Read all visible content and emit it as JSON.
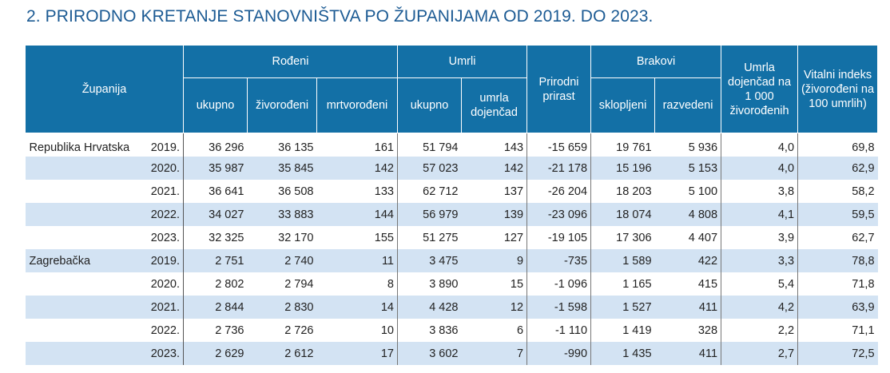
{
  "title": "2. PRIRODNO KRETANJE STANOVNIŠTVA PO ŽUPANIJAMA OD 2019. DO 2023.",
  "headers": {
    "zupanija": "Županija",
    "rodeni": "Rođeni",
    "umrli": "Umrli",
    "prirodni_prirast": "Prirodni prirast",
    "brakovi": "Brakovi",
    "umrla_dojencad_na_1000": "Umrla dojenčad na 1 000 živorođenih",
    "vitalni_indeks": "Vitalni indeks (živorođeni na 100 umrlih)",
    "rodeni_ukupno": "ukupno",
    "zivorodeni": "živorođeni",
    "mrtvorodeni": "mrtvorođeni",
    "umrli_ukupno": "ukupno",
    "umrla_dojencad": "umrla dojenčad",
    "sklopljeni": "sklopljeni",
    "razvedeni": "razvedeni"
  },
  "rows": [
    {
      "name": "Republika Hrvatska",
      "year": "2019.",
      "rodeni_ukupno": "36 296",
      "zivorodeni": "36 135",
      "mrtvorodeni": "161",
      "umrli_ukupno": "51 794",
      "umrla_dojencad": "143",
      "prirast": "-15 659",
      "sklopljeni": "19 761",
      "razvedeni": "5 936",
      "dojencad_na_1000": "4,0",
      "vitalni_indeks": "69,8"
    },
    {
      "name": "",
      "year": "2020.",
      "rodeni_ukupno": "35 987",
      "zivorodeni": "35 845",
      "mrtvorodeni": "142",
      "umrli_ukupno": "57 023",
      "umrla_dojencad": "142",
      "prirast": "-21 178",
      "sklopljeni": "15 196",
      "razvedeni": "5 153",
      "dojencad_na_1000": "4,0",
      "vitalni_indeks": "62,9"
    },
    {
      "name": "",
      "year": "2021.",
      "rodeni_ukupno": "36 641",
      "zivorodeni": "36 508",
      "mrtvorodeni": "133",
      "umrli_ukupno": "62 712",
      "umrla_dojencad": "137",
      "prirast": "-26 204",
      "sklopljeni": "18 203",
      "razvedeni": "5 100",
      "dojencad_na_1000": "3,8",
      "vitalni_indeks": "58,2"
    },
    {
      "name": "",
      "year": "2022.",
      "rodeni_ukupno": "34 027",
      "zivorodeni": "33 883",
      "mrtvorodeni": "144",
      "umrli_ukupno": "56 979",
      "umrla_dojencad": "139",
      "prirast": "-23 096",
      "sklopljeni": "18 074",
      "razvedeni": "4 808",
      "dojencad_na_1000": "4,1",
      "vitalni_indeks": "59,5"
    },
    {
      "name": "",
      "year": "2023.",
      "rodeni_ukupno": "32 325",
      "zivorodeni": "32 170",
      "mrtvorodeni": "155",
      "umrli_ukupno": "51 275",
      "umrla_dojencad": "127",
      "prirast": "-19 105",
      "sklopljeni": "17 306",
      "razvedeni": "4 407",
      "dojencad_na_1000": "3,9",
      "vitalni_indeks": "62,7"
    },
    {
      "name": "Zagrebačka",
      "year": "2019.",
      "rodeni_ukupno": "2 751",
      "zivorodeni": "2 740",
      "mrtvorodeni": "11",
      "umrli_ukupno": "3 475",
      "umrla_dojencad": "9",
      "prirast": "-735",
      "sklopljeni": "1 589",
      "razvedeni": "422",
      "dojencad_na_1000": "3,3",
      "vitalni_indeks": "78,8"
    },
    {
      "name": "",
      "year": "2020.",
      "rodeni_ukupno": "2 802",
      "zivorodeni": "2 794",
      "mrtvorodeni": "8",
      "umrli_ukupno": "3 890",
      "umrla_dojencad": "15",
      "prirast": "-1 096",
      "sklopljeni": "1 165",
      "razvedeni": "415",
      "dojencad_na_1000": "5,4",
      "vitalni_indeks": "71,8"
    },
    {
      "name": "",
      "year": "2021.",
      "rodeni_ukupno": "2 844",
      "zivorodeni": "2 830",
      "mrtvorodeni": "14",
      "umrli_ukupno": "4 428",
      "umrla_dojencad": "12",
      "prirast": "-1 598",
      "sklopljeni": "1 527",
      "razvedeni": "411",
      "dojencad_na_1000": "4,2",
      "vitalni_indeks": "63,9"
    },
    {
      "name": "",
      "year": "2022.",
      "rodeni_ukupno": "2 736",
      "zivorodeni": "2 726",
      "mrtvorodeni": "10",
      "umrli_ukupno": "3 836",
      "umrla_dojencad": "6",
      "prirast": "-1 110",
      "sklopljeni": "1 419",
      "razvedeni": "328",
      "dojencad_na_1000": "2,2",
      "vitalni_indeks": "71,1"
    },
    {
      "name": "",
      "year": "2023.",
      "rodeni_ukupno": "2 629",
      "zivorodeni": "2 612",
      "mrtvorodeni": "17",
      "umrli_ukupno": "3 602",
      "umrla_dojencad": "7",
      "prirast": "-990",
      "sklopljeni": "1 435",
      "razvedeni": "411",
      "dojencad_na_1000": "2,7",
      "vitalni_indeks": "72,5"
    }
  ]
}
